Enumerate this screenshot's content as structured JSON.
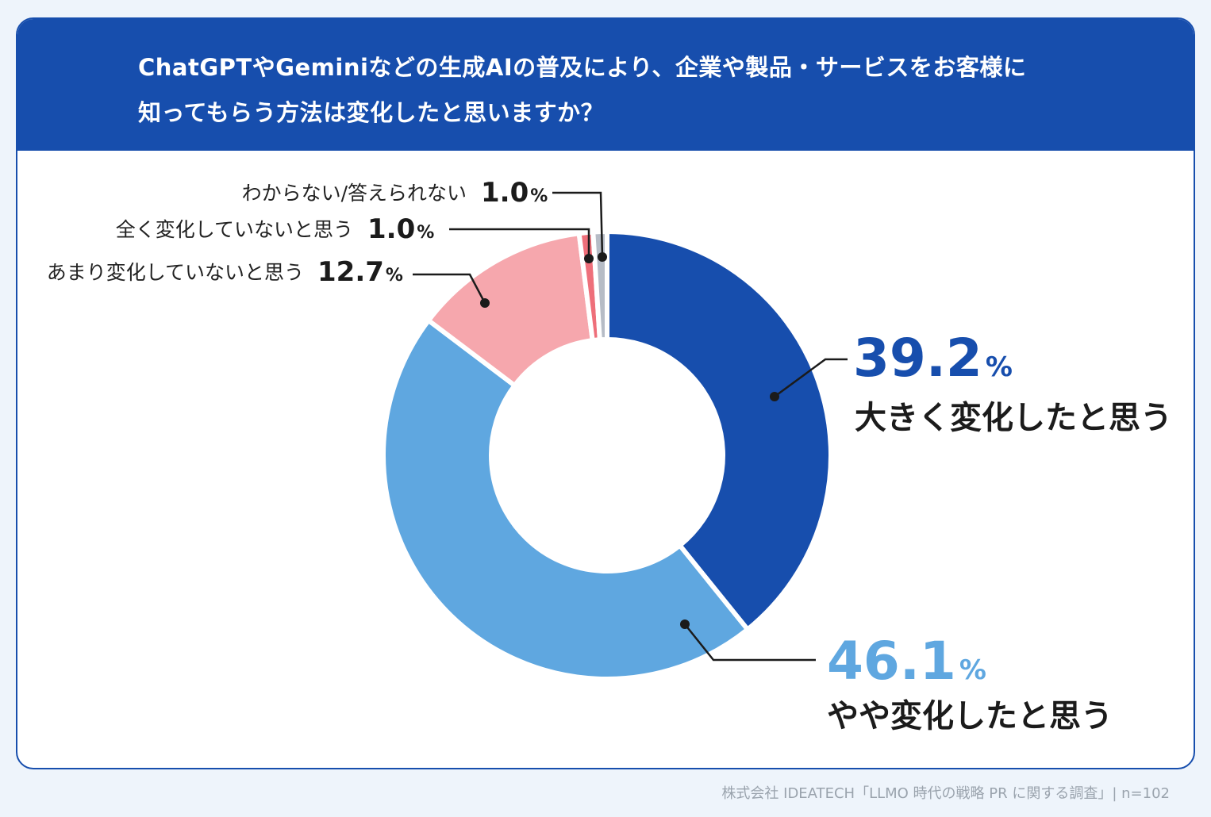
{
  "title": {
    "line1": "ChatGPTやGeminiなどの生成AIの普及により、企業や製品・サービスをお客様に",
    "line2": "知ってもらう方法は変化したと思いますか？"
  },
  "chart_data": {
    "type": "pie",
    "donut": true,
    "title": "ChatGPTやGeminiなどの生成AIの普及により、企業や製品・サービスをお客様に知ってもらう方法は変化したと思いますか？",
    "unit": "%",
    "slices": [
      {
        "label": "大きく変化したと思う",
        "value": 39.2,
        "display": "39.2",
        "color": "#174ead"
      },
      {
        "label": "やや変化したと思う",
        "value": 46.1,
        "display": "46.1",
        "color": "#5fa7e0"
      },
      {
        "label": "あまり変化していないと思う",
        "value": 12.7,
        "display": "12.7",
        "color": "#f6a7ad"
      },
      {
        "label": "全く変化していないと思う",
        "value": 1.0,
        "display": "1.0",
        "color": "#ee6f7a"
      },
      {
        "label": "わからない/答えられない",
        "value": 1.0,
        "display": "1.0",
        "color": "#b6bcc6"
      }
    ]
  },
  "source": "株式会社 IDEATECH「LLMO 時代の戦略 PR に関する調査」| n=102"
}
